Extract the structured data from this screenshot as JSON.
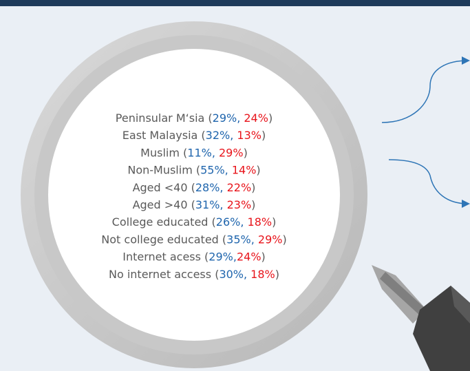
{
  "rows": [
    {
      "label": "Peninsular M‘sia (",
      "blue": "29%",
      "separator": ", ",
      "red": "24%",
      "end": ")"
    },
    {
      "label": "East Malaysia (",
      "blue": "32%",
      "separator": ", ",
      "red": "13%",
      "end": ")"
    },
    {
      "label": "Muslim (",
      "blue": "11%",
      "separator": ", ",
      "red": "29%",
      "end": ")"
    },
    {
      "label": "Non-Muslim (",
      "blue": "55%",
      "separator": ", ",
      "red": "14%",
      "end": ")"
    },
    {
      "label": "Aged <40 (",
      "blue": "28%",
      "separator": ", ",
      "red": "22%",
      "end": ")"
    },
    {
      "label": "Aged >40 (",
      "blue": "31%",
      "separator": ", ",
      "red": "23%",
      "end": ")"
    },
    {
      "label": "College educated (",
      "blue": "26%",
      "separator": ", ",
      "red": "18%",
      "end": ")"
    },
    {
      "label": "Not college educated (",
      "blue": "35%",
      "separator": ", ",
      "red": "29%",
      "end": ")"
    },
    {
      "label": "Internet acess (",
      "blue": "29%",
      "separator": ",",
      "red": "24%",
      "end": ")"
    },
    {
      "label": "No internet access (",
      "blue": "30%",
      "separator": ", ",
      "red": "18%",
      "end": ")"
    }
  ]
}
